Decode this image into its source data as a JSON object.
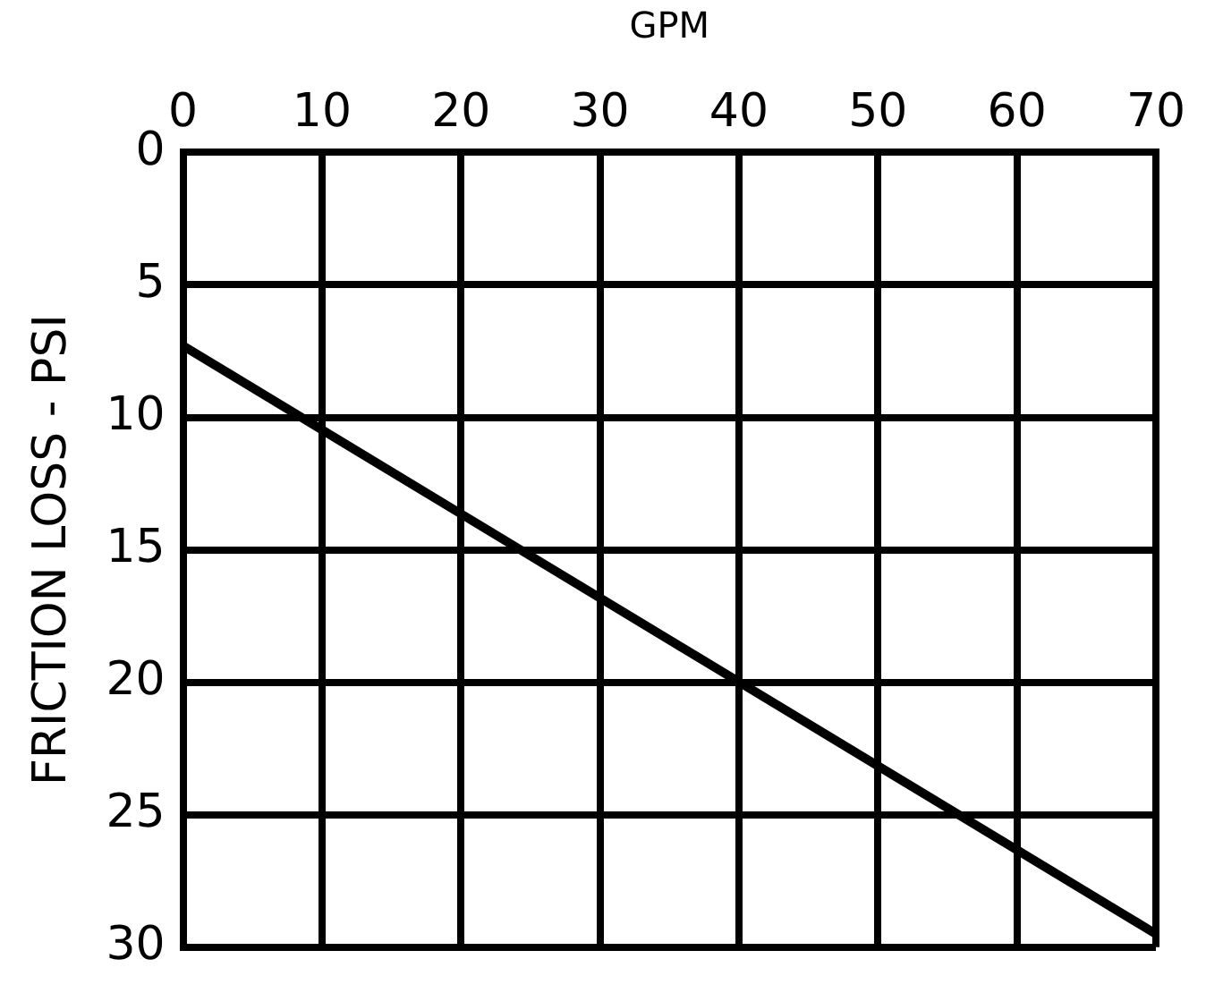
{
  "chart_data": {
    "type": "line",
    "xlabel": "GPM",
    "ylabel": "FRICTION LOSS - PSI",
    "xlim": [
      0,
      70
    ],
    "xticks": [
      0,
      10,
      20,
      30,
      40,
      50,
      60,
      70
    ],
    "ylim": [
      30,
      0
    ],
    "yticks": [
      0,
      5,
      10,
      15,
      20,
      25,
      30
    ],
    "series": [
      {
        "color": "#000000",
        "x": [
          0,
          70
        ],
        "values": [
          7.3,
          29.5
        ]
      }
    ],
    "grid": true,
    "legend": false,
    "marker": "none",
    "line_style": "solid"
  }
}
